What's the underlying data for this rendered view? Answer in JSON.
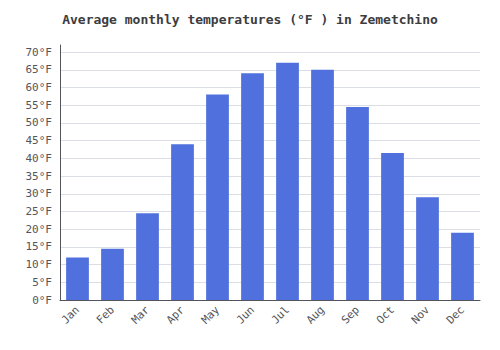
{
  "chart_data": {
    "type": "bar",
    "title": "Average monthly temperatures (°F ) in Zemetchino",
    "categories": [
      "Jan",
      "Feb",
      "Mar",
      "Apr",
      "May",
      "Jun",
      "Jul",
      "Aug",
      "Sep",
      "Oct",
      "Nov",
      "Dec"
    ],
    "values": [
      12,
      14.5,
      24.5,
      44,
      58,
      64,
      67,
      65,
      54.5,
      41.5,
      29,
      19
    ],
    "ylim": [
      0,
      72
    ],
    "yticks": [
      {
        "value": 0,
        "label": "0°F"
      },
      {
        "value": 5,
        "label": "5°F"
      },
      {
        "value": 10,
        "label": "10°F"
      },
      {
        "value": 15,
        "label": "15°F"
      },
      {
        "value": 20,
        "label": "20°F"
      },
      {
        "value": 25,
        "label": "25°F"
      },
      {
        "value": 30,
        "label": "30°F"
      },
      {
        "value": 35,
        "label": "35°F"
      },
      {
        "value": 40,
        "label": "40°F"
      },
      {
        "value": 45,
        "label": "45°F"
      },
      {
        "value": 50,
        "label": "50°F"
      },
      {
        "value": 55,
        "label": "55°F"
      },
      {
        "value": 60,
        "label": "60°F"
      },
      {
        "value": 65,
        "label": "65°F"
      },
      {
        "value": 70,
        "label": "70°F"
      }
    ],
    "grid": true
  }
}
